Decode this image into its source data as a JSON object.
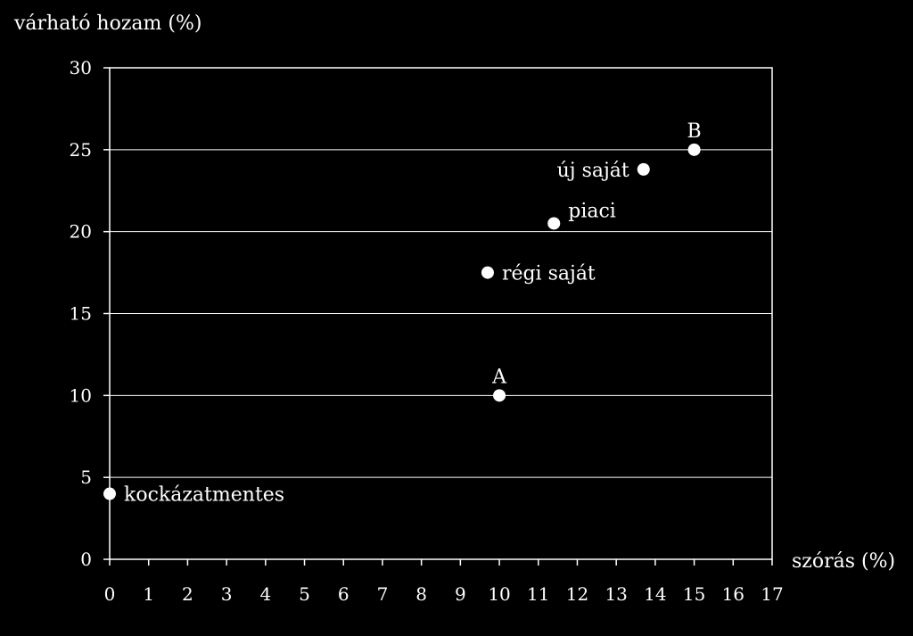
{
  "chart_data": {
    "type": "scatter",
    "ylabel": "várható hozam (%)",
    "xlabel": "szórás (%)",
    "xlim": [
      0,
      17
    ],
    "ylim": [
      0,
      30
    ],
    "x_ticks": [
      "0",
      "1",
      "2",
      "3",
      "4",
      "5",
      "6",
      "7",
      "8",
      "9",
      "10",
      "11",
      "12",
      "13",
      "14",
      "15",
      "16",
      "17"
    ],
    "y_ticks": [
      "0",
      "5",
      "10",
      "15",
      "20",
      "25",
      "30"
    ],
    "grid": "horizontal",
    "colors": {
      "background": "#000000",
      "foreground": "#ffffff",
      "grid": "#ffffff",
      "points": "#ffffff"
    },
    "points": [
      {
        "label": "kockázatmentes",
        "x": 0,
        "y": 4,
        "label_pos": "right"
      },
      {
        "label": "A",
        "x": 10,
        "y": 10,
        "label_pos": "above"
      },
      {
        "label": "régi saját",
        "x": 9.7,
        "y": 17.5,
        "label_pos": "right"
      },
      {
        "label": "piaci",
        "x": 11.4,
        "y": 20.5,
        "label_pos": "above-right"
      },
      {
        "label": "új saját",
        "x": 13.7,
        "y": 23.8,
        "label_pos": "left"
      },
      {
        "label": "B",
        "x": 15,
        "y": 25,
        "label_pos": "above"
      }
    ]
  }
}
